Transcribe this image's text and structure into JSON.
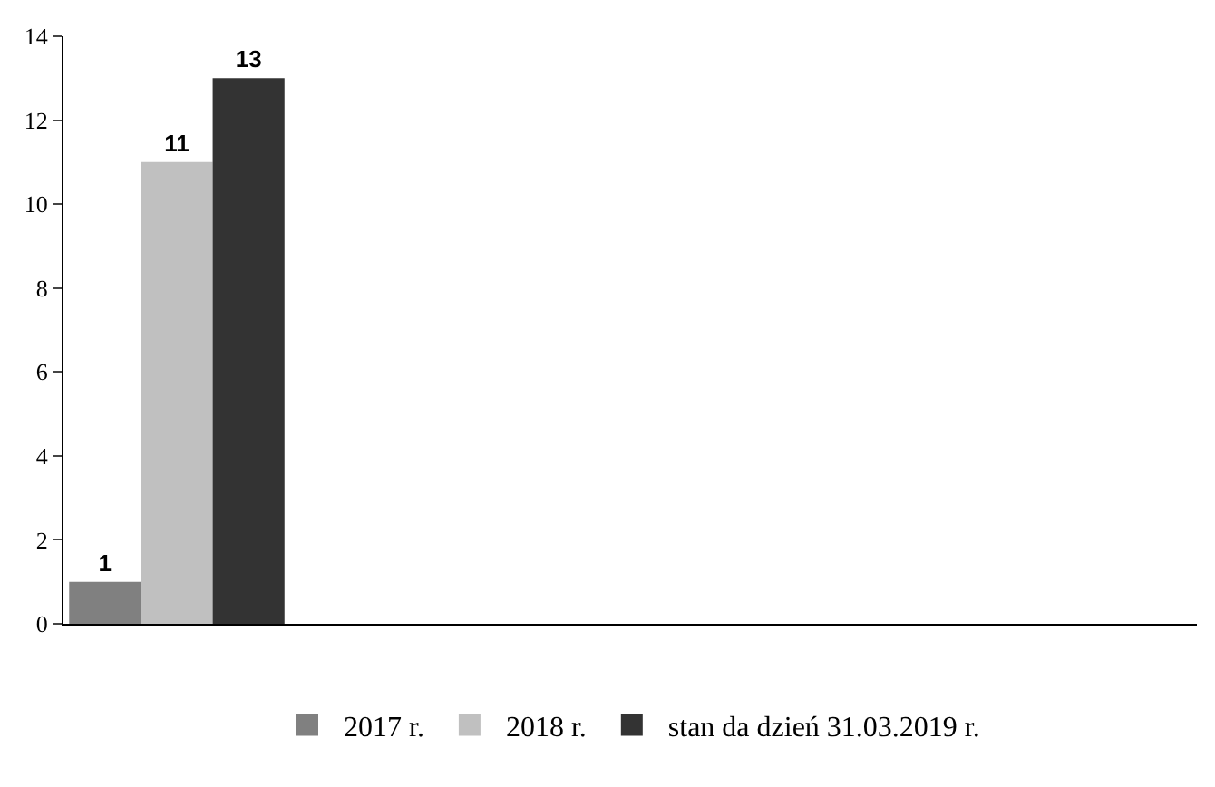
{
  "chart_data": {
    "type": "bar",
    "categories": [
      null,
      null,
      null,
      null,
      null
    ],
    "series": [
      {
        "name": "2017 r.",
        "color": "#808080",
        "values": [
          1,
          null,
          null,
          null,
          null
        ]
      },
      {
        "name": "2018 r.",
        "color": "#c0c0c0",
        "values": [
          11,
          null,
          null,
          null,
          null
        ]
      },
      {
        "name": "stan da dzień 31.03.2019 r.",
        "color": "#333333",
        "values": [
          13,
          null,
          null,
          null,
          null
        ]
      }
    ],
    "ylim": [
      0,
      14
    ],
    "yticks": [
      0,
      2,
      4,
      6,
      8,
      10,
      12,
      14
    ],
    "grid": false,
    "legend": "bottom",
    "data_labels": true
  }
}
